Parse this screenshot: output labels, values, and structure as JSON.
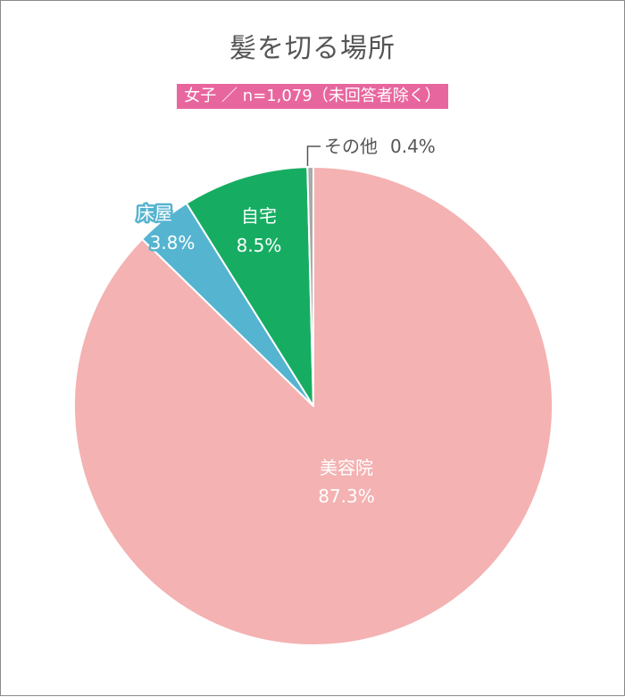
{
  "title": "髪を切る場所",
  "subtitle": "女子 ／ n=1,079（未回答者除く）",
  "colors": {
    "beauty_salon": "#f4b2b2",
    "home": "#16ad63",
    "barber": "#55b4d0",
    "other": "#a9a9a9",
    "title_text": "#555555",
    "subtitle_bg": "#e8669e"
  },
  "chart_data": {
    "type": "pie",
    "title": "髪を切る場所",
    "subtitle": "女子 ／ n=1,079（未回答者除く）",
    "start": "12 o'clock",
    "direction": "clockwise",
    "slices": [
      {
        "label": "美容院",
        "value": 87.3,
        "value_label": "87.3%",
        "color": "#f4b2b2"
      },
      {
        "label": "床屋",
        "value": 3.8,
        "value_label": "3.8%",
        "color": "#55b4d0"
      },
      {
        "label": "自宅",
        "value": 8.5,
        "value_label": "8.5%",
        "color": "#16ad63"
      },
      {
        "label": "その他",
        "value": 0.4,
        "value_label": "0.4%",
        "color": "#a9a9a9"
      }
    ]
  }
}
